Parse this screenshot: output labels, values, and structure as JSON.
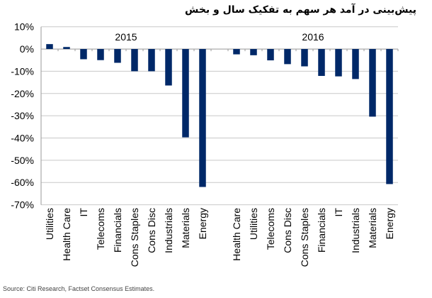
{
  "chart_data": {
    "type": "bar",
    "title": "پیش‌بینی در آمد هر سهم به تفکیک سال و بخش",
    "xlabel": "",
    "ylabel": "",
    "ylim": [
      -70,
      10
    ],
    "yticks": [
      "10%",
      "0%",
      "-10%",
      "-20%",
      "-30%",
      "-40%",
      "-50%",
      "-60%",
      "-70%"
    ],
    "grid": true,
    "bar_color": "#002868",
    "groups": [
      {
        "name": "2015",
        "categories": [
          "Utilities",
          "Health Care",
          "IT",
          "Telecoms",
          "Financials",
          "Cons Staples",
          "Cons Disc",
          "Industrials",
          "Materials",
          "Energy"
        ],
        "values": [
          2.2,
          0.9,
          -4.6,
          -5.0,
          -6.2,
          -10.0,
          -10.0,
          -16.4,
          -39.7,
          -62.0
        ]
      },
      {
        "name": "2016",
        "categories": [
          "Health Care",
          "Utilities",
          "Telecoms",
          "Cons Disc",
          "Cons Staples",
          "Financials",
          "IT",
          "Industrials",
          "Materials",
          "Energy"
        ],
        "values": [
          -2.4,
          -2.8,
          -5.1,
          -6.8,
          -7.8,
          -12.1,
          -12.3,
          -13.5,
          -30.4,
          -60.7
        ]
      }
    ]
  },
  "source": "Source: Citi Research, Factset Consensus Estimates."
}
